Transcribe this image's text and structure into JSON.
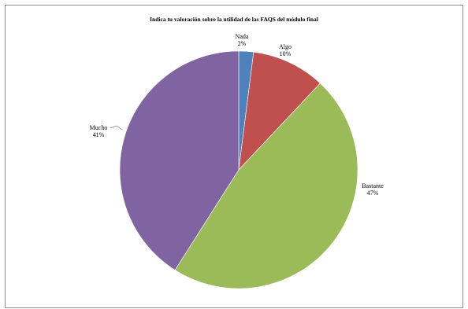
{
  "chart_data": {
    "type": "pie",
    "title": "Indica tu valoración sobre la utilidad  de las FAQS del módulo final",
    "slices": [
      {
        "label": "Nada",
        "percent_label": "2%",
        "value": 2,
        "color": "#4f81bd"
      },
      {
        "label": "Algo",
        "percent_label": "10%",
        "value": 10,
        "color": "#c0504d"
      },
      {
        "label": "Bastante",
        "percent_label": "47%",
        "value": 47,
        "color": "#9bbb59"
      },
      {
        "label": "Mucho",
        "percent_label": "41%",
        "value": 41,
        "color": "#8064a2"
      }
    ],
    "start_angle_deg": 0,
    "direction": "clockwise",
    "legend": "none",
    "data_labels": "outside with leader lines"
  }
}
